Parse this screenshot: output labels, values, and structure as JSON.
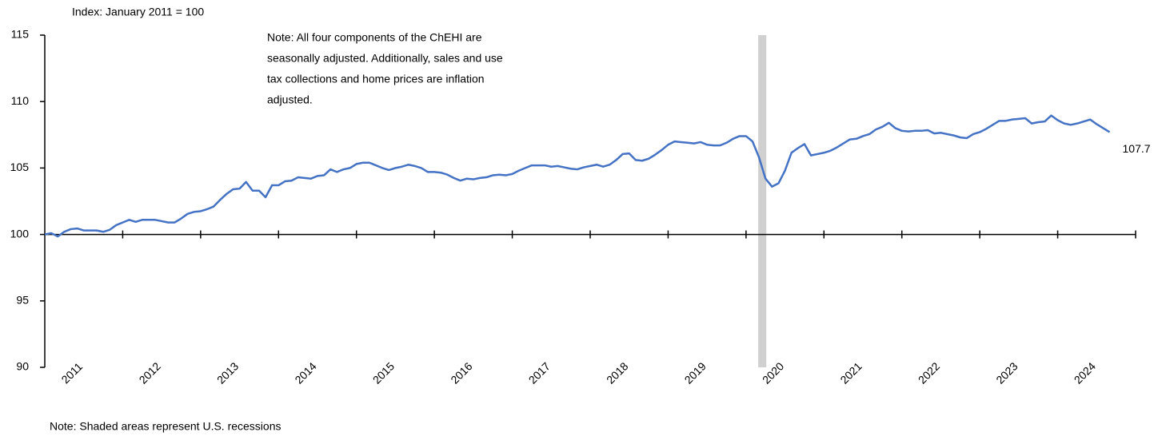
{
  "chart_data": {
    "type": "line",
    "y_label": "Index: January 2011 = 100",
    "annotation": [
      "Note: All four components of the ChEHI are",
      "seasonally adjusted. Additionally, sales and use",
      "tax collections and home prices are inflation",
      "adjusted."
    ],
    "footnote": "Note: Shaded areas represent U.S. recessions",
    "categories": [
      null,
      null,
      null,
      null,
      null,
      null,
      "2011",
      null,
      null,
      null,
      null,
      null,
      null,
      null,
      null,
      null,
      null,
      null,
      "2012",
      null,
      null,
      null,
      null,
      null,
      null,
      null,
      null,
      null,
      null,
      null,
      "2013",
      null,
      null,
      null,
      null,
      null,
      null,
      null,
      null,
      null,
      null,
      null,
      "2014",
      null,
      null,
      null,
      null,
      null,
      null,
      null,
      null,
      null,
      null,
      null,
      "2015",
      null,
      null,
      null,
      null,
      null,
      null,
      null,
      null,
      null,
      null,
      null,
      "2016",
      null,
      null,
      null,
      null,
      null,
      null,
      null,
      null,
      null,
      null,
      null,
      "2017",
      null,
      null,
      null,
      null,
      null,
      null,
      null,
      null,
      null,
      null,
      null,
      "2018",
      null,
      null,
      null,
      null,
      null,
      null,
      null,
      null,
      null,
      null,
      null,
      "2019",
      null,
      null,
      null,
      null,
      null,
      null,
      null,
      null,
      null,
      null,
      null,
      "2020",
      null,
      null,
      null,
      null,
      null,
      null,
      null,
      null,
      null,
      null,
      null,
      "2021",
      null,
      null,
      null,
      null,
      null,
      null,
      null,
      null,
      null,
      null,
      null,
      "2022",
      null,
      null,
      null,
      null,
      null,
      null,
      null,
      null,
      null,
      null,
      null,
      "2023",
      null,
      null,
      null,
      null,
      null,
      null,
      null,
      null,
      null,
      null,
      null,
      "2024",
      null,
      null
    ],
    "series": [
      {
        "color": "#4472c4",
        "values": [
          100,
          100.1,
          99.85,
          100.2,
          100.4,
          100.45,
          100.3,
          100.3,
          100.3,
          100.2,
          100.35,
          100.7,
          100.9,
          101.1,
          100.95,
          101.1,
          101.1,
          101.1,
          101.0,
          100.9,
          100.9,
          101.2,
          101.55,
          101.7,
          101.75,
          101.9,
          102.1,
          102.6,
          103.05,
          103.4,
          103.45,
          103.95,
          103.3,
          103.3,
          102.8,
          103.7,
          103.7,
          104.0,
          104.05,
          104.3,
          104.25,
          104.2,
          104.4,
          104.45,
          104.9,
          104.7,
          104.9,
          105.0,
          105.3,
          105.4,
          105.4,
          105.2,
          105.0,
          104.85,
          105.0,
          105.1,
          105.25,
          105.15,
          105.0,
          104.7,
          104.7,
          104.65,
          104.5,
          104.25,
          104.05,
          104.2,
          104.15,
          104.25,
          104.3,
          104.45,
          104.5,
          104.45,
          104.55,
          104.8,
          105.0,
          105.2,
          105.2,
          105.2,
          105.1,
          105.15,
          105.05,
          104.95,
          104.9,
          105.05,
          105.15,
          105.25,
          105.1,
          105.25,
          105.6,
          106.05,
          106.1,
          105.6,
          105.55,
          105.7,
          106.0,
          106.35,
          106.75,
          107.0,
          106.95,
          106.9,
          106.85,
          106.95,
          106.75,
          106.7,
          106.7,
          106.9,
          107.2,
          107.4,
          107.4,
          107.0,
          105.8,
          104.2,
          103.6,
          103.85,
          104.8,
          106.15,
          106.5,
          106.8,
          105.95,
          106.05,
          106.15,
          106.3,
          106.55,
          106.85,
          107.15,
          107.2,
          107.4,
          107.55,
          107.9,
          108.1,
          108.4,
          108.0,
          107.8,
          107.75,
          107.8,
          107.8,
          107.85,
          107.6,
          107.65,
          107.55,
          107.45,
          107.3,
          107.25,
          107.55,
          107.7,
          107.95,
          108.25,
          108.55,
          108.55,
          108.65,
          108.7,
          108.75,
          108.35,
          108.45,
          108.5,
          108.95,
          108.6,
          108.35,
          108.25,
          108.35,
          108.5,
          108.65,
          108.3,
          108.0,
          107.7
        ]
      }
    ],
    "recessions": [
      [
        110,
        111
      ]
    ],
    "recession_color": "#d0d0d0",
    "xaxis_crossing": 100,
    "ylim": [
      90,
      115
    ],
    "yticks": [
      90,
      95,
      100,
      105,
      110,
      115
    ]
  }
}
